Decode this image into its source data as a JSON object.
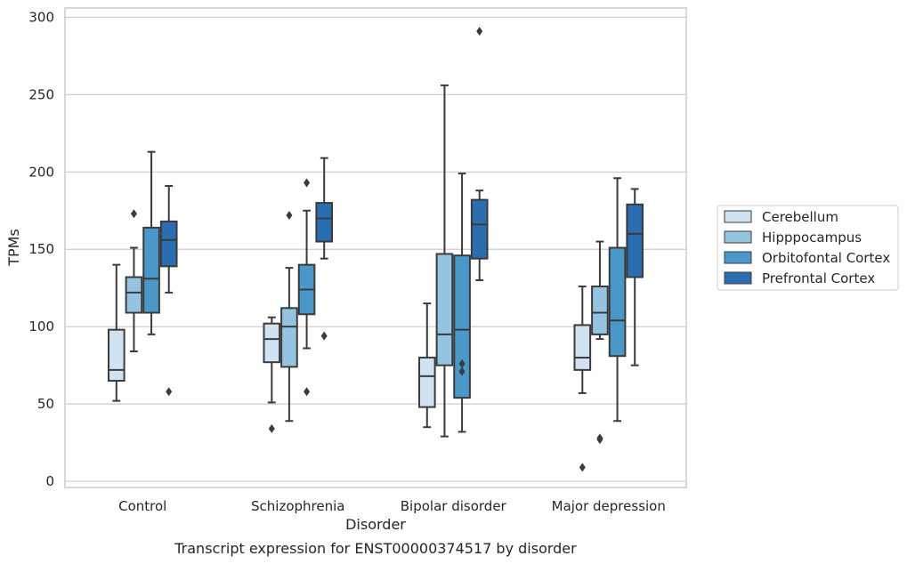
{
  "caption": "Transcript expression for ENST00000374517 by disorder",
  "chart_data": {
    "type": "box",
    "title": "",
    "xlabel": "Disorder",
    "ylabel": "TPMs",
    "ylim": [
      -4,
      306
    ],
    "yticks": [
      0,
      50,
      100,
      150,
      200,
      250,
      300
    ],
    "grid": "horizontal",
    "legend_position": "right",
    "categories": [
      "Control",
      "Schizophrenia",
      "Bipolar disorder",
      "Major depression"
    ],
    "series": [
      {
        "name": "Cerebellum",
        "color": "#d0e1f2",
        "boxes": [
          {
            "whisker_low": 52,
            "q1": 65,
            "median": 72,
            "q3": 98,
            "whisker_high": 140,
            "outliers": []
          },
          {
            "whisker_low": 51,
            "q1": 77,
            "median": 92,
            "q3": 102,
            "whisker_high": 106,
            "outliers": [
              34
            ]
          },
          {
            "whisker_low": 35,
            "q1": 48,
            "median": 68,
            "q3": 80,
            "whisker_high": 115,
            "outliers": []
          },
          {
            "whisker_low": 57,
            "q1": 72,
            "median": 80,
            "q3": 101,
            "whisker_high": 126,
            "outliers": [
              9
            ]
          }
        ]
      },
      {
        "name": "Hipppocampus",
        "color": "#94c4df",
        "boxes": [
          {
            "whisker_low": 84,
            "q1": 109,
            "median": 122,
            "q3": 132,
            "whisker_high": 151,
            "outliers": [
              173
            ]
          },
          {
            "whisker_low": 39,
            "q1": 74,
            "median": 100,
            "q3": 112,
            "whisker_high": 138,
            "outliers": [
              172
            ]
          },
          {
            "whisker_low": 29,
            "q1": 75,
            "median": 95,
            "q3": 147,
            "whisker_high": 256,
            "outliers": []
          },
          {
            "whisker_low": 92,
            "q1": 95,
            "median": 109,
            "q3": 126,
            "whisker_high": 155,
            "outliers": [
              28,
              27
            ]
          }
        ]
      },
      {
        "name": "Orbitofontal Cortex",
        "color": "#4a98c9",
        "boxes": [
          {
            "whisker_low": 95,
            "q1": 109,
            "median": 131,
            "q3": 164,
            "whisker_high": 213,
            "outliers": []
          },
          {
            "whisker_low": 86,
            "q1": 108,
            "median": 124,
            "q3": 140,
            "whisker_high": 175,
            "outliers": [
              193,
              58
            ]
          },
          {
            "whisker_low": 32,
            "q1": 54,
            "median": 98,
            "q3": 146,
            "whisker_high": 199,
            "outliers": [
              76,
              71
            ]
          },
          {
            "whisker_low": 39,
            "q1": 81,
            "median": 104,
            "q3": 151,
            "whisker_high": 196,
            "outliers": []
          }
        ]
      },
      {
        "name": "Prefrontal Cortex",
        "color": "#2a6db0",
        "boxes": [
          {
            "whisker_low": 122,
            "q1": 139,
            "median": 156,
            "q3": 168,
            "whisker_high": 191,
            "outliers": [
              58
            ]
          },
          {
            "whisker_low": 144,
            "q1": 155,
            "median": 170,
            "q3": 180,
            "whisker_high": 209,
            "outliers": [
              94
            ]
          },
          {
            "whisker_low": 130,
            "q1": 144,
            "median": 166,
            "q3": 182,
            "whisker_high": 188,
            "outliers": [
              291
            ]
          },
          {
            "whisker_low": 75,
            "q1": 132,
            "median": 160,
            "q3": 179,
            "whisker_high": 189,
            "outliers": []
          }
        ]
      }
    ]
  }
}
